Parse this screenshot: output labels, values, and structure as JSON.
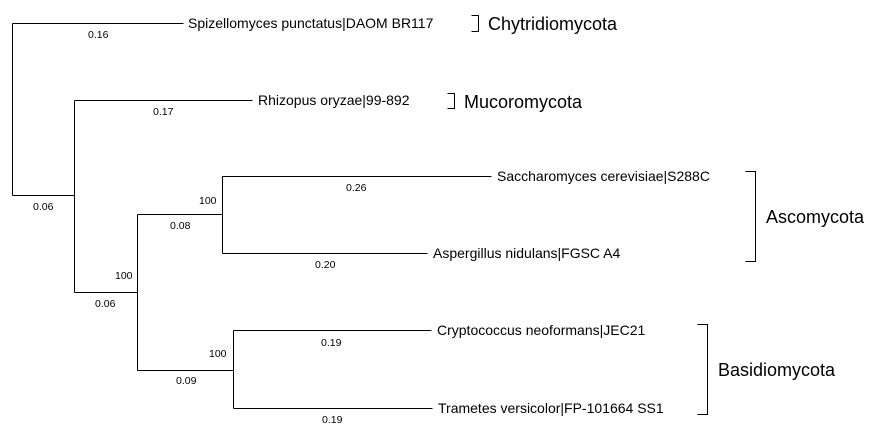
{
  "leaves": {
    "spizellomyces": "Spizellomyces punctatus|DAOM BR117",
    "rhizopus": "Rhizopus oryzae|99-892",
    "saccharomyces": "Saccharomyces cerevisiae|S288C",
    "aspergillus": "Aspergillus nidulans|FGSC A4",
    "cryptococcus": "Cryptococcus neoformans|JEC21",
    "trametes": "Trametes versicolor|FP-101664 SS1"
  },
  "branch_lengths": {
    "spizellomyces": "0.16",
    "rhizopus": "0.17",
    "saccharomyces": "0.26",
    "aspergillus": "0.20",
    "cryptococcus": "0.19",
    "trametes": "0.19",
    "root_to_inner": "0.06",
    "inner_to_dikarya": "0.06",
    "dikarya_to_ascomycota": "0.08",
    "dikarya_to_basidiomycota": "0.09"
  },
  "bootstrap": {
    "dikarya": "100",
    "ascomycota": "100",
    "basidiomycota": "100"
  },
  "clades": {
    "chytridiomycota": "Chytridiomycota",
    "mucoromycota": "Mucoromycota",
    "ascomycota": "Ascomycota",
    "basidiomycota": "Basidiomycota"
  }
}
